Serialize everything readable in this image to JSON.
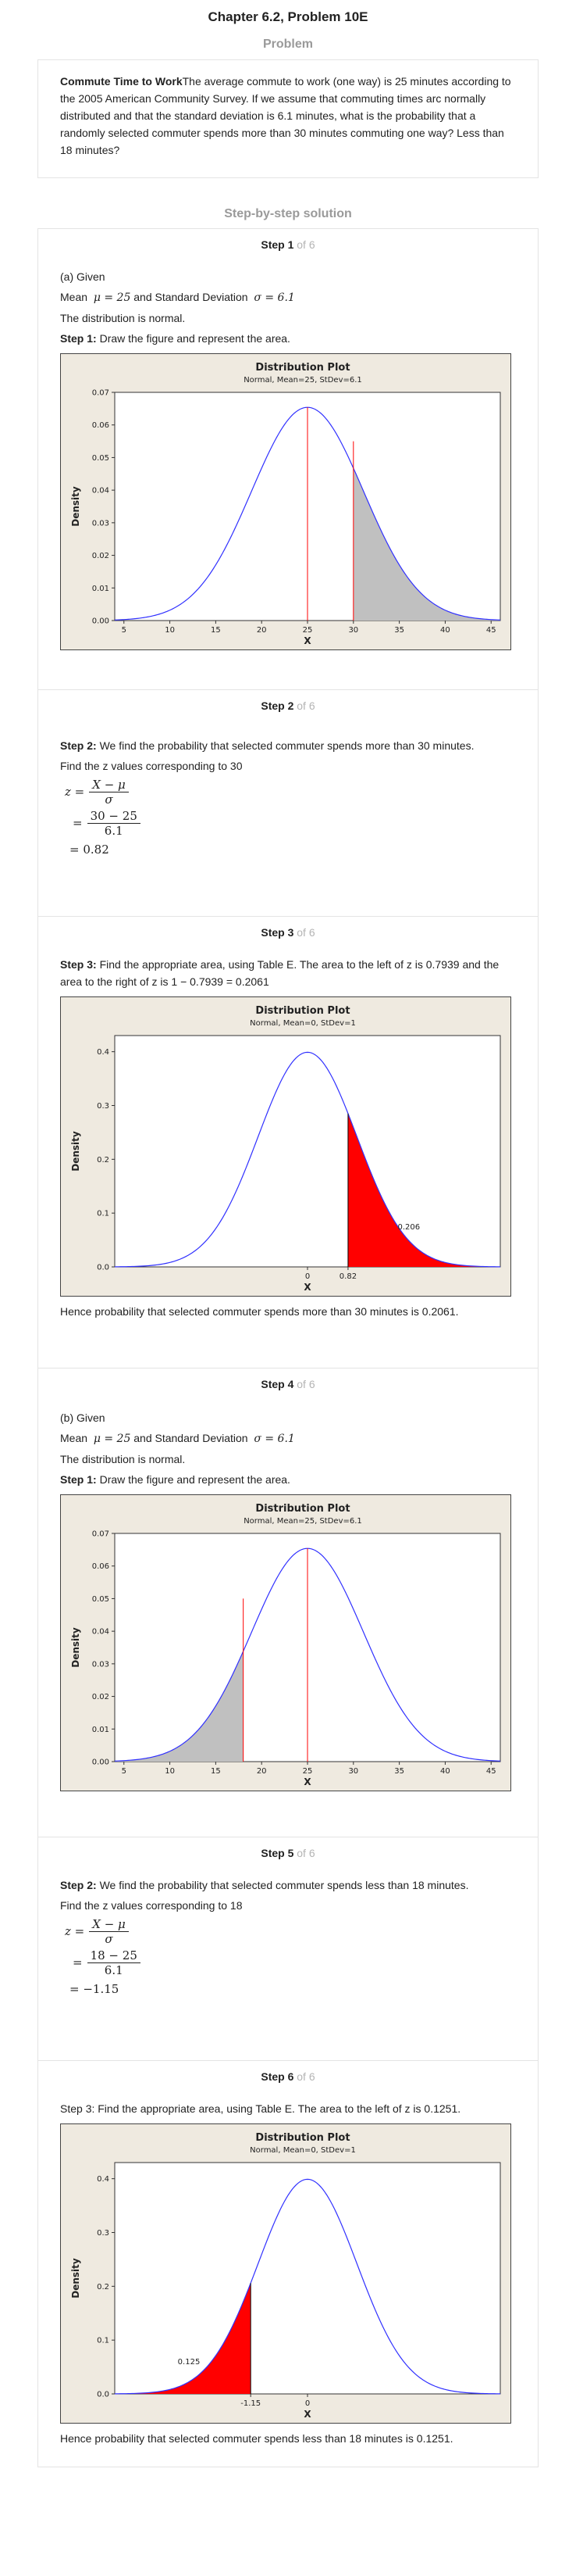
{
  "header": {
    "title": "Chapter 6.2, Problem 10E"
  },
  "problem": {
    "heading": "Problem",
    "bold_title": "Commute Time to Work",
    "text": "The average commute to work (one way) is 25 minutes according to the 2005 American Community Survey. If we assume that commuting times arc normally distributed and that the standard deviation is 6.1 minutes, what is the probability that a randomly selected commuter spends more than 30 minutes commuting one way? Less than 18 minutes?"
  },
  "solution": {
    "heading": "Step-by-step solution",
    "of_label": "of 6",
    "steps": [
      {
        "title": "Step 1",
        "given": "(a) Given",
        "mean_label": "Mean",
        "mean_eq": "μ = 25",
        "and_sd": "and Standard Deviation",
        "sd_eq": "σ = 6.1",
        "normal_text": "The distribution is normal.",
        "bold": "Step 1:",
        "text": " Draw the figure and represent the area."
      },
      {
        "title": "Step 2",
        "bold": "Step 2:",
        "text": " We find the probability that selected commuter spends more than 30 minutes.",
        "find_z": "Find the z values corresponding to 30",
        "eq_lhs": "z =",
        "eq_num": "X − μ",
        "eq_den": "σ",
        "eq2_num": "30 − 25",
        "eq2_den": "6.1",
        "eq_result": "= 0.82"
      },
      {
        "title": "Step 3",
        "bold": "Step 3:",
        "text": " Find the appropriate area, using Table E. The area to the left of z is 0.7939 and the area to the right of z is 1 − 0.7939 = 0.2061",
        "conclusion": "Hence probability that selected commuter spends more than 30 minutes is 0.2061."
      },
      {
        "title": "Step 4",
        "given": "(b) Given",
        "mean_label": "Mean",
        "mean_eq": "μ = 25",
        "and_sd": "and Standard Deviation",
        "sd_eq": "σ = 6.1",
        "normal_text": "The distribution is normal.",
        "bold": "Step 1:",
        "text": " Draw the figure and represent the area."
      },
      {
        "title": "Step 5",
        "bold": "Step 2:",
        "text": " We find the probability that selected commuter spends less than 18 minutes.",
        "find_z": "Find the z values corresponding to 18",
        "eq_lhs": "z =",
        "eq_num": "X − μ",
        "eq_den": "σ",
        "eq2_num": "18 − 25",
        "eq2_den": "6.1",
        "eq_result": "= −1.15"
      },
      {
        "title": "Step 6",
        "text": "Step 3: Find the appropriate area, using Table E. The area to the left of z is 0.1251.",
        "conclusion": "Hence probability that selected commuter spends less than 18 minutes is 0.1251."
      }
    ]
  },
  "chart_data": [
    {
      "type": "area",
      "title": "Distribution Plot",
      "subtitle": "Normal, Mean=25, StDev=6.1",
      "xlabel": "X",
      "ylabel": "Density",
      "mean": 25,
      "sd": 6.1,
      "xlim": [
        4,
        46
      ],
      "ylim": [
        0,
        0.07
      ],
      "xticks": [
        5,
        10,
        15,
        20,
        25,
        30,
        35,
        40,
        45
      ],
      "yticks": [
        0.0,
        0.01,
        0.02,
        0.03,
        0.04,
        0.05,
        0.06,
        0.07
      ],
      "ytick_labels": [
        "0.00",
        "0.01",
        "0.02",
        "0.03",
        "0.04",
        "0.05",
        "0.06",
        "0.07"
      ],
      "shade": "right",
      "cut": 30,
      "cut_height": 0.055,
      "fill": "#c0c0c0",
      "curve_color": "#3030ff",
      "line_color": "#ff0000"
    },
    {
      "type": "area",
      "title": "Distribution Plot",
      "subtitle": "Normal, Mean=0, StDev=1",
      "xlabel": "X",
      "ylabel": "Density",
      "mean": 0,
      "sd": 1,
      "xlim": [
        -3.9,
        3.9
      ],
      "ylim": [
        0,
        0.43
      ],
      "xticks": [
        0,
        0.82
      ],
      "xtick_labels": [
        "0",
        "0.82"
      ],
      "yticks": [
        0.0,
        0.1,
        0.2,
        0.3,
        0.4
      ],
      "ytick_labels": [
        "0.0",
        "0.1",
        "0.2",
        "0.3",
        "0.4"
      ],
      "shade": "right",
      "cut": 0.82,
      "fill": "#ff0000",
      "area_label": "0.206",
      "label_x": 2.05,
      "label_y": 0.07,
      "curve_color": "#3030ff",
      "line_color": "#000000"
    },
    {
      "type": "area",
      "title": "Distribution Plot",
      "subtitle": "Normal, Mean=25, StDev=6.1",
      "xlabel": "X",
      "ylabel": "Density",
      "mean": 25,
      "sd": 6.1,
      "xlim": [
        4,
        46
      ],
      "ylim": [
        0,
        0.07
      ],
      "xticks": [
        5,
        10,
        15,
        20,
        25,
        30,
        35,
        40,
        45
      ],
      "yticks": [
        0.0,
        0.01,
        0.02,
        0.03,
        0.04,
        0.05,
        0.06,
        0.07
      ],
      "ytick_labels": [
        "0.00",
        "0.01",
        "0.02",
        "0.03",
        "0.04",
        "0.05",
        "0.06",
        "0.07"
      ],
      "shade": "left",
      "cut": 18,
      "cut_height": 0.05,
      "fill": "#c0c0c0",
      "curve_color": "#3030ff",
      "line_color": "#ff0000"
    },
    {
      "type": "area",
      "title": "Distribution Plot",
      "subtitle": "Normal, Mean=0, StDev=1",
      "xlabel": "X",
      "ylabel": "Density",
      "mean": 0,
      "sd": 1,
      "xlim": [
        -3.9,
        3.9
      ],
      "ylim": [
        0,
        0.43
      ],
      "xticks": [
        -1.15,
        0
      ],
      "xtick_labels": [
        "-1.15",
        "0"
      ],
      "yticks": [
        0.0,
        0.1,
        0.2,
        0.3,
        0.4
      ],
      "ytick_labels": [
        "0.0",
        "0.1",
        "0.2",
        "0.3",
        "0.4"
      ],
      "shade": "left",
      "cut": -1.15,
      "fill": "#ff0000",
      "area_label": "0.125",
      "label_x": -2.4,
      "label_y": 0.055,
      "curve_color": "#3030ff",
      "line_color": "#000000"
    }
  ]
}
